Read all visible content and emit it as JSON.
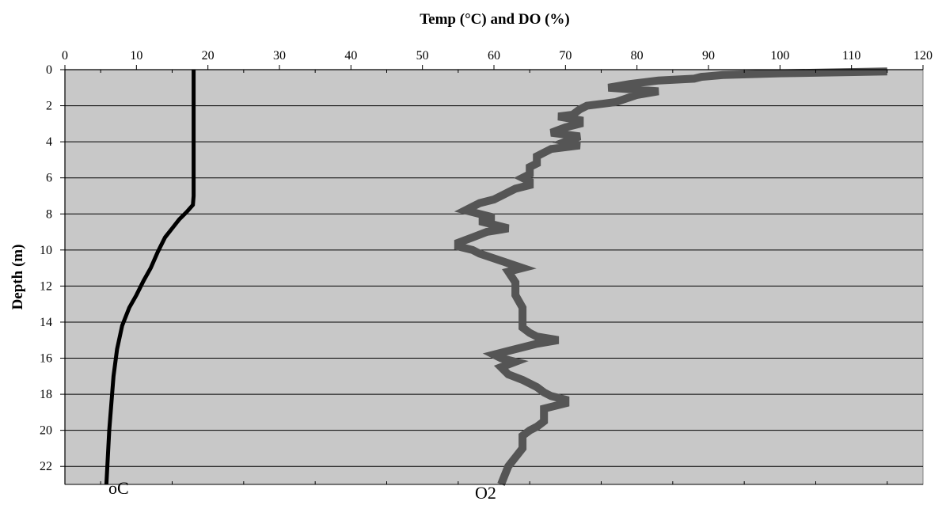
{
  "chart_data": {
    "type": "line",
    "title": "",
    "xlabel": "Temp (°C) and DO (%)",
    "ylabel": "Depth (m)",
    "xlim": [
      0,
      120
    ],
    "ylim": [
      0,
      23
    ],
    "y_inverted": true,
    "x_axis_position": "top",
    "grid": "horizontal",
    "x_ticks": [
      0,
      10,
      20,
      30,
      40,
      50,
      60,
      70,
      80,
      90,
      100,
      110,
      120
    ],
    "y_ticks": [
      0,
      2,
      4,
      6,
      8,
      10,
      12,
      14,
      16,
      18,
      20,
      22
    ],
    "bottom_labels": [
      "oC",
      "O2"
    ],
    "colors": {
      "plot_background": "#c8c8c8",
      "temperature": "#000000",
      "oxygen": "#555555"
    },
    "series": [
      {
        "name": "oC",
        "points": [
          [
            18.0,
            0
          ],
          [
            18.0,
            2
          ],
          [
            18.0,
            4
          ],
          [
            18.0,
            6
          ],
          [
            18.0,
            7.0
          ],
          [
            17.9,
            7.5
          ],
          [
            17.0,
            7.9
          ],
          [
            16.0,
            8.3
          ],
          [
            15.0,
            8.8
          ],
          [
            14.0,
            9.3
          ],
          [
            13.0,
            10.1
          ],
          [
            12.0,
            11.0
          ],
          [
            11.0,
            11.7
          ],
          [
            10.0,
            12.5
          ],
          [
            9.0,
            13.2
          ],
          [
            8.0,
            14.2
          ],
          [
            7.3,
            15.5
          ],
          [
            6.8,
            17.0
          ],
          [
            6.5,
            18.5
          ],
          [
            6.2,
            20.0
          ],
          [
            6.0,
            21.5
          ],
          [
            5.8,
            23.0
          ]
        ]
      },
      {
        "name": "O2",
        "points": [
          [
            115,
            0.1
          ],
          [
            100,
            0.2
          ],
          [
            92,
            0.3
          ],
          [
            89,
            0.4
          ],
          [
            88,
            0.5
          ],
          [
            83,
            0.6
          ],
          [
            79,
            0.8
          ],
          [
            76,
            1.0
          ],
          [
            83,
            1.2
          ],
          [
            80,
            1.4
          ],
          [
            77,
            1.8
          ],
          [
            73,
            2.0
          ],
          [
            72,
            2.2
          ],
          [
            71,
            2.5
          ],
          [
            69,
            2.6
          ],
          [
            72,
            2.8
          ],
          [
            72,
            3.0
          ],
          [
            70,
            3.2
          ],
          [
            68,
            3.5
          ],
          [
            72,
            3.7
          ],
          [
            70,
            4.0
          ],
          [
            72,
            4.2
          ],
          [
            68,
            4.4
          ],
          [
            67,
            4.6
          ],
          [
            66,
            4.8
          ],
          [
            66,
            5.2
          ],
          [
            65,
            5.4
          ],
          [
            65,
            5.6
          ],
          [
            65,
            5.8
          ],
          [
            64,
            6.0
          ],
          [
            65,
            6.2
          ],
          [
            65,
            6.4
          ],
          [
            63,
            6.6
          ],
          [
            62,
            6.8
          ],
          [
            61,
            7.0
          ],
          [
            60,
            7.2
          ],
          [
            58,
            7.4
          ],
          [
            57,
            7.6
          ],
          [
            56,
            7.8
          ],
          [
            58,
            8.0
          ],
          [
            60,
            8.2
          ],
          [
            58,
            8.4
          ],
          [
            60,
            8.6
          ],
          [
            62,
            8.8
          ],
          [
            59,
            9.0
          ],
          [
            57,
            9.3
          ],
          [
            55,
            9.6
          ],
          [
            55,
            9.8
          ],
          [
            57,
            10.0
          ],
          [
            58,
            10.2
          ],
          [
            61,
            10.6
          ],
          [
            64,
            11.0
          ],
          [
            62,
            11.2
          ],
          [
            63,
            11.8
          ],
          [
            63,
            12.5
          ],
          [
            64,
            13.2
          ],
          [
            64,
            13.8
          ],
          [
            64,
            14.3
          ],
          [
            65,
            14.6
          ],
          [
            66,
            14.8
          ],
          [
            69,
            15.0
          ],
          [
            66,
            15.2
          ],
          [
            62,
            15.6
          ],
          [
            60,
            15.8
          ],
          [
            61,
            16.0
          ],
          [
            63,
            16.2
          ],
          [
            61,
            16.5
          ],
          [
            62,
            16.9
          ],
          [
            64,
            17.2
          ],
          [
            66,
            17.6
          ],
          [
            67,
            17.9
          ],
          [
            68,
            18.1
          ],
          [
            70,
            18.3
          ],
          [
            70,
            18.5
          ],
          [
            67,
            18.8
          ],
          [
            67,
            19.2
          ],
          [
            67,
            19.5
          ],
          [
            66,
            19.8
          ],
          [
            65,
            20.0
          ],
          [
            64,
            20.3
          ],
          [
            64,
            20.6
          ],
          [
            64,
            21.0
          ],
          [
            63,
            21.5
          ],
          [
            62,
            22.0
          ],
          [
            61.5,
            22.5
          ],
          [
            61,
            23.0
          ]
        ]
      }
    ]
  }
}
